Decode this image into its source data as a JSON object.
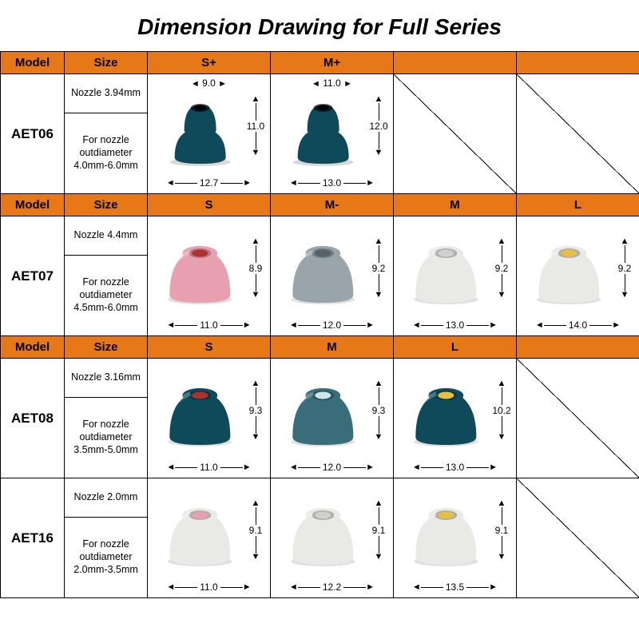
{
  "title": "Dimension Drawing for Full Series",
  "header_bg": "#e67817",
  "border_color": "#000000",
  "labels": {
    "model": "Model",
    "size": "Size"
  },
  "colors": {
    "teal_dark": "#0f4a5a",
    "teal_mid": "#3a6d7a",
    "pink": "#e8a0b0",
    "red_core": "#b03030",
    "grey": "#9aa4ab",
    "white_translucent": "#e9e9e6",
    "yellow": "#e8c040",
    "shadow": "#8a8f92"
  },
  "rows": [
    {
      "model": "AET06",
      "nozzle": "Nozzle 3.94mm",
      "range": "For nozzle outdiameter 4.0mm-6.0mm",
      "sizes": [
        "S+",
        "M+",
        "",
        ""
      ],
      "tips": [
        {
          "type": "double",
          "body": "#0f4a5a",
          "core": "#000",
          "top": "9.0",
          "w": "12.7",
          "h": "11.0"
        },
        {
          "type": "double",
          "body": "#0f4a5a",
          "core": "#000",
          "top": "11.0",
          "w": "13.0",
          "h": "12.0"
        },
        null,
        null
      ]
    },
    {
      "model": "AET07",
      "nozzle": "Nozzle 4.4mm",
      "range": "For nozzle outdiameter 4.5mm-6.0mm",
      "sizes": [
        "S",
        "M-",
        "M",
        "L"
      ],
      "tips": [
        {
          "type": "single",
          "body": "#e8a0b0",
          "core": "#b03030",
          "w": "11.0",
          "h": "8.9"
        },
        {
          "type": "single",
          "body": "#9aa4ab",
          "core": "#556068",
          "w": "12.0",
          "h": "9.2"
        },
        {
          "type": "single",
          "body": "#e9e9e6",
          "core": "#cfcfcc",
          "w": "13.0",
          "h": "9.2"
        },
        {
          "type": "single",
          "body": "#e9e9e6",
          "core": "#e8c040",
          "w": "14.0",
          "h": "9.2"
        }
      ]
    },
    {
      "model": "AET08",
      "nozzle": "Nozzle 3.16mm",
      "range": "For nozzle outdiameter 3.5mm-5.0mm",
      "sizes": [
        "S",
        "M",
        "L",
        ""
      ],
      "tips": [
        {
          "type": "single",
          "body": "#0f4a5a",
          "core": "#b03030",
          "w": "11.0",
          "h": "9.3"
        },
        {
          "type": "single",
          "body": "#3a6d7a",
          "core": "#cfe6ea",
          "w": "12.0",
          "h": "9.3"
        },
        {
          "type": "single",
          "body": "#0f4a5a",
          "core": "#e8c040",
          "w": "13.0",
          "h": "10.2"
        },
        null
      ]
    },
    {
      "model": "AET16",
      "nozzle": "Nozzle 2.0mm",
      "range": "For nozzle outdiameter 2.0mm-3.5mm",
      "sizes": [
        "S",
        "M",
        "L",
        ""
      ],
      "tips": [
        {
          "type": "single",
          "body": "#e9e9e6",
          "core": "#e8a0b0",
          "w": "11.0",
          "h": "9.1"
        },
        {
          "type": "single",
          "body": "#e9e9e6",
          "core": "#cfcfcc",
          "w": "12.2",
          "h": "9.1"
        },
        {
          "type": "single",
          "body": "#e9e9e6",
          "core": "#e8c040",
          "w": "13.5",
          "h": "9.1"
        },
        null
      ]
    }
  ]
}
